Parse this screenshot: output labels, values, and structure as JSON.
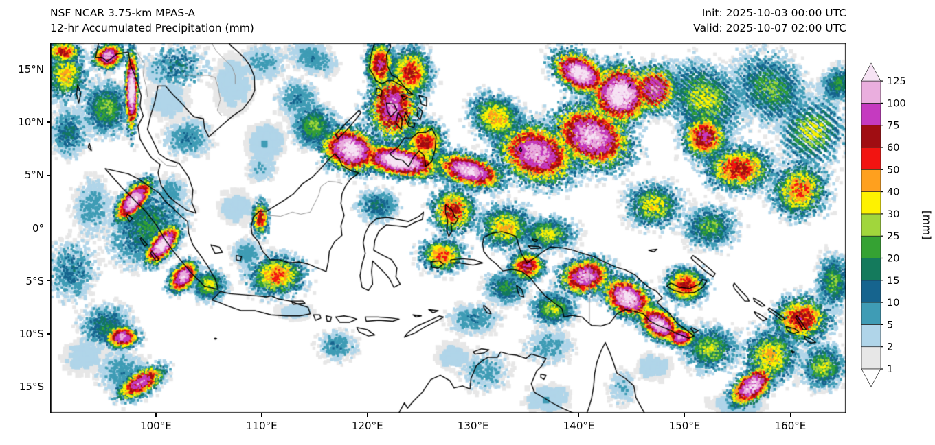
{
  "header": {
    "model_line": "NSF NCAR 3.75-km MPAS-A",
    "product_line": "12-hr Accumulated Precipitation (mm)",
    "init_line": "Init: 2025-10-03 00:00 UTC",
    "valid_line": "Valid: 2025-10-07 02:00 UTC"
  },
  "chart_data": {
    "type": "heatmap",
    "title": "12-hr Accumulated Precipitation (mm)",
    "model": "NSF NCAR 3.75-km MPAS-A",
    "init": "2025-10-03 00:00 UTC",
    "valid": "2025-10-07 02:00 UTC",
    "extent": {
      "lon_min": 90.0,
      "lon_max": 165.3,
      "lat_min": -17.5,
      "lat_max": 17.5
    },
    "x_ticks": [
      {
        "label": "100°E",
        "lon": 100
      },
      {
        "label": "110°E",
        "lon": 110
      },
      {
        "label": "120°E",
        "lon": 120
      },
      {
        "label": "130°E",
        "lon": 130
      },
      {
        "label": "140°E",
        "lon": 140
      },
      {
        "label": "150°E",
        "lon": 150
      },
      {
        "label": "160°E",
        "lon": 160
      }
    ],
    "y_ticks": [
      {
        "label": "15°N",
        "lat": 15
      },
      {
        "label": "10°N",
        "lat": 10
      },
      {
        "label": "5°N",
        "lat": 5
      },
      {
        "label": "0°",
        "lat": 0
      },
      {
        "label": "5°S",
        "lat": -5
      },
      {
        "label": "10°S",
        "lat": -10
      },
      {
        "label": "15°S",
        "lat": -15
      }
    ],
    "colorbar": {
      "unit": "[mm]",
      "levels": [
        "1",
        "2",
        "5",
        "10",
        "15",
        "20",
        "25",
        "30",
        "40",
        "50",
        "60",
        "75",
        "100",
        "125"
      ],
      "levels_mm": [
        1,
        2,
        5,
        10,
        15,
        20,
        25,
        30,
        40,
        50,
        60,
        75,
        100,
        125
      ],
      "band_colors": [
        "#e7e7e7",
        "#b0d5e9",
        "#3f9cb5",
        "#16648e",
        "#147a5c",
        "#35a233",
        "#a1d63c",
        "#fef200",
        "#ffa01e",
        "#f21411",
        "#a00d12",
        "#c53ac0",
        "#eaaede"
      ],
      "under": "#ffffff",
      "over": "#f6e3f4"
    },
    "precip_cells_schema": [
      "lon",
      "lat",
      "rx_deg",
      "ry_deg",
      "rot_deg",
      "n_samples",
      "max_mm",
      "streak_bands"
    ],
    "precip_cells": [
      [
        91.5,
        14.5,
        2.0,
        2.5,
        0,
        1600,
        35,
        0
      ],
      [
        95.5,
        16.2,
        1.4,
        1.1,
        20,
        1500,
        90,
        0
      ],
      [
        97.7,
        13.0,
        0.55,
        3.6,
        0,
        2400,
        120,
        0
      ],
      [
        95.3,
        11.3,
        2.3,
        2.6,
        0,
        2400,
        22,
        0
      ],
      [
        91.8,
        9.0,
        1.8,
        2.4,
        0,
        1200,
        14,
        0
      ],
      [
        91.3,
        16.6,
        1.6,
        1.0,
        0,
        900,
        55,
        0
      ],
      [
        101.0,
        12.0,
        2.6,
        2.4,
        0,
        900,
        3,
        0
      ],
      [
        103.0,
        8.5,
        2.4,
        2.0,
        0,
        1300,
        9,
        0
      ],
      [
        102.0,
        15.3,
        3.0,
        2.2,
        0,
        900,
        14,
        0
      ],
      [
        100.2,
        14.8,
        1.6,
        1.4,
        0,
        700,
        3,
        0
      ],
      [
        107.3,
        13.5,
        2.4,
        3.4,
        0,
        1500,
        3,
        0
      ],
      [
        110.2,
        15.6,
        2.6,
        1.9,
        0,
        1100,
        6,
        0
      ],
      [
        114.8,
        16.0,
        2.6,
        1.6,
        -20,
        1400,
        8,
        0
      ],
      [
        97.9,
        2.6,
        1.0,
        2.3,
        -40,
        2800,
        110,
        0
      ],
      [
        100.6,
        -1.6,
        1.0,
        2.1,
        -40,
        2500,
        120,
        0
      ],
      [
        102.6,
        -4.6,
        1.0,
        1.6,
        -40,
        2100,
        100,
        0
      ],
      [
        99.2,
        0.2,
        3.2,
        4.2,
        -40,
        3800,
        18,
        0
      ],
      [
        94.0,
        2.0,
        2.1,
        3.1,
        0,
        1400,
        7,
        0
      ],
      [
        92.0,
        -4.0,
        2.5,
        3.0,
        0,
        1400,
        12,
        0
      ],
      [
        96.8,
        -10.3,
        1.5,
        1.0,
        0,
        1700,
        85,
        0
      ],
      [
        95.3,
        -9.3,
        2.6,
        2.1,
        0,
        1700,
        16,
        0
      ],
      [
        98.6,
        -14.6,
        1.1,
        2.4,
        -60,
        1900,
        80,
        0
      ],
      [
        96.8,
        -13.6,
        2.6,
        2.4,
        0,
        1400,
        8,
        0
      ],
      [
        101.5,
        3.5,
        1.5,
        1.5,
        0,
        600,
        8,
        0
      ],
      [
        105.0,
        -5.4,
        1.6,
        1.5,
        0,
        1200,
        28,
        0
      ],
      [
        111.5,
        -4.5,
        2.6,
        1.9,
        0,
        2400,
        45,
        0
      ],
      [
        108.6,
        -2.4,
        1.6,
        1.5,
        0,
        900,
        7,
        0
      ],
      [
        109.9,
        0.9,
        0.8,
        1.6,
        0,
        700,
        55,
        0
      ],
      [
        110.0,
        5.6,
        1.6,
        1.6,
        0,
        700,
        5,
        0
      ],
      [
        118.4,
        7.4,
        2.6,
        1.9,
        -20,
        4800,
        115,
        0
      ],
      [
        115.0,
        9.6,
        2.1,
        2.1,
        0,
        1900,
        22,
        0
      ],
      [
        113.4,
        12.1,
        2.1,
        2.1,
        0,
        1100,
        9,
        0
      ],
      [
        122.4,
        11.4,
        2.3,
        3.1,
        0,
        3800,
        85,
        0
      ],
      [
        121.2,
        15.4,
        1.3,
        2.1,
        0,
        2000,
        65,
        0
      ],
      [
        124.1,
        14.6,
        1.9,
        2.3,
        0,
        2400,
        55,
        0
      ],
      [
        125.4,
        8.1,
        1.9,
        1.9,
        0,
        2000,
        55,
        0
      ],
      [
        123.0,
        6.3,
        3.6,
        1.3,
        -10,
        5600,
        125,
        0
      ],
      [
        129.6,
        5.4,
        3.1,
        1.4,
        -15,
        4200,
        105,
        0
      ],
      [
        121.0,
        2.1,
        2.1,
        1.6,
        0,
        1100,
        14,
        0
      ],
      [
        132.2,
        10.4,
        2.6,
        2.1,
        -30,
        2400,
        38,
        0
      ],
      [
        136.0,
        7.0,
        3.6,
        2.6,
        -20,
        6600,
        95,
        0
      ],
      [
        141.2,
        8.6,
        3.6,
        2.6,
        -25,
        6600,
        105,
        0
      ],
      [
        143.9,
        12.6,
        2.6,
        2.6,
        -35,
        5600,
        125,
        0
      ],
      [
        140.1,
        14.6,
        2.6,
        1.6,
        -30,
        3800,
        115,
        0
      ],
      [
        147.1,
        13.1,
        2.1,
        2.1,
        -40,
        3000,
        85,
        6
      ],
      [
        151.9,
        12.1,
        3.9,
        3.1,
        -40,
        4600,
        28,
        8
      ],
      [
        158.1,
        13.1,
        3.9,
        3.1,
        -45,
        3800,
        22,
        8
      ],
      [
        162.1,
        9.1,
        3.1,
        3.1,
        -40,
        3000,
        28,
        6
      ],
      [
        164.6,
        13.6,
        1.6,
        2.1,
        -40,
        1200,
        18,
        0
      ],
      [
        155.1,
        5.6,
        3.1,
        2.1,
        0,
        3000,
        55,
        0
      ],
      [
        160.9,
        3.6,
        2.6,
        2.6,
        0,
        2700,
        45,
        0
      ],
      [
        151.9,
        8.6,
        2.1,
        2.1,
        0,
        2400,
        65,
        0
      ],
      [
        147.1,
        2.1,
        2.6,
        2.1,
        0,
        2000,
        32,
        0
      ],
      [
        152.4,
        0.1,
        2.6,
        2.1,
        0,
        1600,
        22,
        0
      ],
      [
        128.1,
        1.6,
        2.1,
        2.1,
        0,
        2000,
        55,
        0
      ],
      [
        133.1,
        0.1,
        2.6,
        2.1,
        0,
        2000,
        36,
        0
      ],
      [
        137.1,
        -0.6,
        2.6,
        1.6,
        0,
        1600,
        28,
        0
      ],
      [
        127.1,
        -2.6,
        2.1,
        1.6,
        0,
        1600,
        45,
        0
      ],
      [
        135.1,
        -3.6,
        1.6,
        1.3,
        0,
        1600,
        65,
        0
      ],
      [
        140.6,
        -4.6,
        2.3,
        1.6,
        10,
        3000,
        95,
        0
      ],
      [
        144.6,
        -6.6,
        2.3,
        1.6,
        -30,
        3400,
        115,
        0
      ],
      [
        147.6,
        -9.1,
        2.1,
        1.3,
        -35,
        2700,
        105,
        0
      ],
      [
        149.6,
        -10.3,
        1.3,
        0.9,
        0,
        1200,
        85,
        0
      ],
      [
        150.1,
        -5.4,
        1.9,
        1.6,
        0,
        2000,
        55,
        0
      ],
      [
        137.6,
        -7.6,
        2.1,
        1.6,
        0,
        1500,
        26,
        0
      ],
      [
        133.1,
        -5.6,
        2.1,
        1.6,
        0,
        1200,
        18,
        0
      ],
      [
        130.1,
        -8.6,
        2.6,
        1.6,
        0,
        1000,
        9,
        0
      ],
      [
        137.1,
        -11.1,
        2.6,
        1.9,
        0,
        900,
        7,
        0
      ],
      [
        117.1,
        -11.1,
        2.1,
        1.6,
        0,
        700,
        9,
        0
      ],
      [
        131.1,
        -13.6,
        2.6,
        2.1,
        0,
        900,
        7,
        0
      ],
      [
        137.1,
        -16.1,
        2.6,
        1.6,
        0,
        700,
        4,
        0
      ],
      [
        144.1,
        -15.1,
        1.6,
        2.1,
        0,
        550,
        5,
        0
      ],
      [
        152.4,
        -11.4,
        2.6,
        2.1,
        0,
        2000,
        26,
        0
      ],
      [
        156.4,
        -14.9,
        1.3,
        2.3,
        -50,
        2400,
        105,
        0
      ],
      [
        158.1,
        -12.1,
        2.6,
        2.6,
        0,
        2400,
        36,
        0
      ],
      [
        161.1,
        -8.6,
        2.6,
        2.1,
        0,
        2700,
        60,
        0
      ],
      [
        163.1,
        -13.1,
        2.1,
        2.1,
        0,
        1600,
        26,
        0
      ],
      [
        164.1,
        -5.1,
        1.6,
        2.6,
        0,
        1600,
        22,
        0
      ],
      [
        93.1,
        -12.1,
        2.6,
        2.1,
        0,
        900,
        3,
        0
      ],
      [
        155.1,
        -16.6,
        3.1,
        1.3,
        0,
        800,
        4,
        0
      ],
      [
        147.1,
        -13.1,
        2.1,
        1.6,
        0,
        600,
        3,
        0
      ],
      [
        128.1,
        -12.1,
        2.1,
        1.6,
        0,
        500,
        3,
        0
      ],
      [
        107.6,
        1.9,
        2.1,
        2.1,
        0,
        700,
        3,
        0
      ],
      [
        113.1,
        -7.9,
        2.1,
        0.9,
        0,
        500,
        3,
        0
      ],
      [
        110.4,
        8.1,
        2.1,
        2.1,
        0,
        900,
        4,
        0
      ]
    ]
  }
}
